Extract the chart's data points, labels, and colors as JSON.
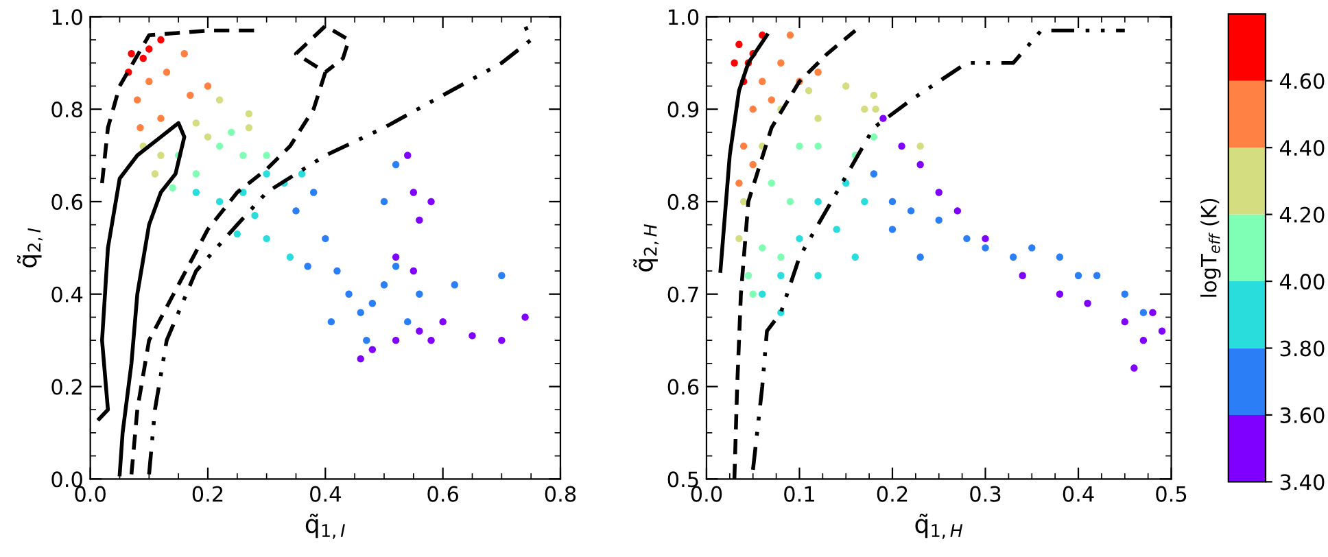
{
  "chart_data": [
    {
      "type": "scatter",
      "xlabel": "q̃$_{1,I}$",
      "ylabel": "q̃$_{2,I}$",
      "xlim": [
        0,
        0.8
      ],
      "ylim": [
        0,
        1
      ],
      "xticks": [
        {
          "value": 0,
          "label": "0.0"
        },
        {
          "value": 0.2,
          "label": "0.2"
        },
        {
          "value": 0.4,
          "label": "0.4"
        },
        {
          "value": 0.6,
          "label": "0.6"
        },
        {
          "value": 0.8,
          "label": "0.8"
        }
      ],
      "yticks": [
        {
          "value": 0,
          "label": "0.0"
        },
        {
          "value": 0.2,
          "label": "0.2"
        },
        {
          "value": 0.4,
          "label": "0.4"
        },
        {
          "value": 0.6,
          "label": "0.6"
        },
        {
          "value": 0.8,
          "label": "0.8"
        },
        {
          "value": 1,
          "label": "1.0"
        }
      ],
      "grid": false,
      "legend": false,
      "series": [
        {
          "marker": "circle",
          "x": [
            0.07,
            0.065,
            0.09,
            0.12,
            0.1,
            0.08,
            0.1,
            0.13,
            0.16,
            0.12,
            0.2,
            0.17,
            0.085,
            0.09,
            0.12,
            0.18,
            0.22,
            0.27,
            0.2,
            0.27,
            0.11,
            0.15,
            0.18,
            0.22,
            0.26,
            0.3,
            0.24,
            0.14,
            0.18,
            0.22,
            0.26,
            0.3,
            0.33,
            0.25,
            0.3,
            0.34,
            0.36,
            0.28,
            0.35,
            0.38,
            0.4,
            0.42,
            0.44,
            0.46,
            0.48,
            0.5,
            0.52,
            0.5,
            0.47,
            0.56,
            0.62,
            0.7,
            0.54,
            0.41,
            0.37,
            0.52,
            0.54,
            0.55,
            0.56,
            0.58,
            0.52,
            0.48,
            0.52,
            0.56,
            0.6,
            0.58,
            0.65,
            0.7,
            0.74,
            0.46,
            0.55
          ],
          "values": [
            0.92,
            0.88,
            0.91,
            0.95,
            0.93,
            0.82,
            0.86,
            0.88,
            0.92,
            0.78,
            0.85,
            0.83,
            0.76,
            0.72,
            0.7,
            0.77,
            0.82,
            0.79,
            0.74,
            0.76,
            0.66,
            0.7,
            0.66,
            0.72,
            0.7,
            0.7,
            0.75,
            0.63,
            0.62,
            0.6,
            0.62,
            0.66,
            0.64,
            0.53,
            0.52,
            0.48,
            0.66,
            0.57,
            0.58,
            0.62,
            0.52,
            0.45,
            0.4,
            0.36,
            0.38,
            0.42,
            0.46,
            0.6,
            0.3,
            0.4,
            0.42,
            0.44,
            0.34,
            0.34,
            0.46,
            0.68,
            0.7,
            0.62,
            0.56,
            0.6,
            0.48,
            0.28,
            0.3,
            0.32,
            0.34,
            0.3,
            0.31,
            0.3,
            0.35,
            0.26,
            0.45
          ],
          "colors": [
            "#ff0000",
            "#ff0000",
            "#ff0000",
            "#ff0000",
            "#ff0000",
            "#ff8040",
            "#ff8040",
            "#ff8040",
            "#ff8040",
            "#ff8040",
            "#ff8040",
            "#ff8040",
            "#ff8040",
            "#d4dd80",
            "#d4dd80",
            "#d4dd80",
            "#d4dd80",
            "#d4dd80",
            "#d4dd80",
            "#d4dd80",
            "#d4dd80",
            "#80ffb4",
            "#80ffb4",
            "#80ffb4",
            "#80ffb4",
            "#80ffb4",
            "#80ffb4",
            "#80ffb4",
            "#2adddd",
            "#2adddd",
            "#2adddd",
            "#2adddd",
            "#2adddd",
            "#2adddd",
            "#2adddd",
            "#2adddd",
            "#2adddd",
            "#2adddd",
            "#2b7ff6",
            "#2b7ff6",
            "#2b7ff6",
            "#2b7ff6",
            "#2b7ff6",
            "#2b7ff6",
            "#2b7ff6",
            "#2b7ff6",
            "#2b7ff6",
            "#2b7ff6",
            "#2b7ff6",
            "#2b7ff6",
            "#2b7ff6",
            "#2b7ff6",
            "#2b7ff6",
            "#2b7ff6",
            "#2b7ff6",
            "#2b7ff6",
            "#8000ff",
            "#8000ff",
            "#8000ff",
            "#8000ff",
            "#8000ff",
            "#8000ff",
            "#8000ff",
            "#8000ff",
            "#8000ff",
            "#8000ff",
            "#8000ff",
            "#8000ff",
            "#8000ff",
            "#8000ff",
            "#8000ff"
          ]
        },
        {
          "type": "line",
          "color": "#000000",
          "line_style": "solid",
          "x": [
            0.05,
            0.055,
            0.07,
            0.08,
            0.1,
            0.12,
            0.145,
            0.16,
            0.15,
            0.12,
            0.08,
            0.05,
            0.03,
            0.02,
            0.03,
            0.015
          ],
          "values": [
            0.01,
            0.1,
            0.25,
            0.4,
            0.55,
            0.62,
            0.66,
            0.74,
            0.77,
            0.74,
            0.7,
            0.65,
            0.5,
            0.3,
            0.15,
            0.13
          ]
        },
        {
          "type": "line",
          "color": "#000000",
          "line_style": "dashed",
          "x": [
            0.02,
            0.03,
            0.05,
            0.1,
            0.2,
            0.28
          ],
          "values": [
            0.64,
            0.76,
            0.85,
            0.96,
            0.97,
            0.97
          ]
        },
        {
          "type": "line",
          "color": "#000000",
          "line_style": "dashed",
          "x": [
            0.07,
            0.08,
            0.1,
            0.15,
            0.2,
            0.25,
            0.3,
            0.34,
            0.38,
            0.4,
            0.35,
            0.4,
            0.44,
            0.43,
            0.4
          ],
          "values": [
            0.01,
            0.15,
            0.3,
            0.42,
            0.54,
            0.62,
            0.67,
            0.72,
            0.8,
            0.88,
            0.92,
            0.98,
            0.95,
            0.91,
            0.88
          ]
        },
        {
          "type": "line",
          "color": "#000000",
          "line_style": "dashdot",
          "x": [
            0.1,
            0.11,
            0.13,
            0.18,
            0.25,
            0.3,
            0.4,
            0.5,
            0.6,
            0.7,
            0.75,
            0.74
          ],
          "values": [
            0.01,
            0.15,
            0.3,
            0.45,
            0.55,
            0.62,
            0.7,
            0.76,
            0.83,
            0.9,
            0.95,
            0.98
          ]
        }
      ]
    },
    {
      "type": "scatter",
      "xlabel": "q̃$_{1,H}$",
      "ylabel": "q̃$_{2,H}$",
      "xlim": [
        0,
        0.5
      ],
      "ylim": [
        0.5,
        1
      ],
      "xticks": [
        {
          "value": 0,
          "label": "0.0"
        },
        {
          "value": 0.1,
          "label": "0.1"
        },
        {
          "value": 0.2,
          "label": "0.2"
        },
        {
          "value": 0.3,
          "label": "0.3"
        },
        {
          "value": 0.4,
          "label": "0.4"
        },
        {
          "value": 0.5,
          "label": "0.5"
        }
      ],
      "yticks": [
        {
          "value": 0.5,
          "label": "0.5"
        },
        {
          "value": 0.6,
          "label": "0.6"
        },
        {
          "value": 0.7,
          "label": "0.7"
        },
        {
          "value": 0.8,
          "label": "0.8"
        },
        {
          "value": 0.9,
          "label": "0.9"
        },
        {
          "value": 1,
          "label": "1.0"
        }
      ],
      "clim": [
        3.4,
        4.8
      ],
      "clabel": "logT$_{eff}$ (K)",
      "cticks": [
        {
          "value": 3.4,
          "label": "3.40"
        },
        {
          "value": 3.6,
          "label": "3.60"
        },
        {
          "value": 3.8,
          "label": "3.80"
        },
        {
          "value": 4.0,
          "label": "4.00"
        },
        {
          "value": 4.2,
          "label": "4.20"
        },
        {
          "value": 4.4,
          "label": "4.40"
        },
        {
          "value": 4.6,
          "label": "4.60"
        }
      ],
      "grid": false,
      "legend": false,
      "series": [
        {
          "marker": "circle",
          "x": [
            0.03,
            0.035,
            0.04,
            0.05,
            0.06,
            0.045,
            0.035,
            0.04,
            0.05,
            0.06,
            0.08,
            0.09,
            0.1,
            0.12,
            0.05,
            0.07,
            0.035,
            0.04,
            0.06,
            0.08,
            0.11,
            0.15,
            0.18,
            0.12,
            0.17,
            0.182,
            0.23,
            0.045,
            0.05,
            0.06,
            0.09,
            0.1,
            0.12,
            0.07,
            0.16,
            0.18,
            0.08,
            0.06,
            0.08,
            0.1,
            0.12,
            0.15,
            0.17,
            0.08,
            0.12,
            0.16,
            0.14,
            0.18,
            0.2,
            0.22,
            0.25,
            0.28,
            0.3,
            0.33,
            0.35,
            0.38,
            0.4,
            0.42,
            0.45,
            0.47,
            0.23,
            0.2,
            0.19,
            0.21,
            0.23,
            0.25,
            0.27,
            0.3,
            0.34,
            0.38,
            0.41,
            0.45,
            0.47,
            0.48,
            0.49,
            0.46
          ],
          "values": [
            0.95,
            0.97,
            0.93,
            0.96,
            0.98,
            0.95,
            0.82,
            0.86,
            0.9,
            0.93,
            0.95,
            0.98,
            0.93,
            0.94,
            0.84,
            0.91,
            0.76,
            0.8,
            0.86,
            0.9,
            0.92,
            0.925,
            0.915,
            0.89,
            0.9,
            0.9,
            0.86,
            0.72,
            0.7,
            0.75,
            0.8,
            0.86,
            0.86,
            0.82,
            0.85,
            0.87,
            0.74,
            0.7,
            0.72,
            0.76,
            0.8,
            0.82,
            0.8,
            0.68,
            0.72,
            0.74,
            0.77,
            0.83,
            0.8,
            0.79,
            0.78,
            0.76,
            0.75,
            0.74,
            0.75,
            0.74,
            0.72,
            0.72,
            0.7,
            0.68,
            0.74,
            0.77,
            0.89,
            0.86,
            0.84,
            0.81,
            0.79,
            0.76,
            0.72,
            0.7,
            0.69,
            0.67,
            0.65,
            0.68,
            0.66,
            0.62
          ],
          "colors": [
            "#ff0000",
            "#ff0000",
            "#ff0000",
            "#ff0000",
            "#ff0000",
            "#ff0000",
            "#ff8040",
            "#ff8040",
            "#ff8040",
            "#ff8040",
            "#ff8040",
            "#ff8040",
            "#ff8040",
            "#ff8040",
            "#ff8040",
            "#ff8040",
            "#d4dd80",
            "#d4dd80",
            "#d4dd80",
            "#d4dd80",
            "#d4dd80",
            "#d4dd80",
            "#d4dd80",
            "#d4dd80",
            "#d4dd80",
            "#d4dd80",
            "#d4dd80",
            "#80ffb4",
            "#80ffb4",
            "#80ffb4",
            "#80ffb4",
            "#80ffb4",
            "#80ffb4",
            "#80ffb4",
            "#80ffb4",
            "#80ffb4",
            "#80ffb4",
            "#2adddd",
            "#2adddd",
            "#2adddd",
            "#2adddd",
            "#2adddd",
            "#2adddd",
            "#2adddd",
            "#2adddd",
            "#2adddd",
            "#2adddd",
            "#2b7ff6",
            "#2b7ff6",
            "#2b7ff6",
            "#2b7ff6",
            "#2b7ff6",
            "#2b7ff6",
            "#2b7ff6",
            "#2b7ff6",
            "#2b7ff6",
            "#2b7ff6",
            "#2b7ff6",
            "#2b7ff6",
            "#2b7ff6",
            "#2b7ff6",
            "#2b7ff6",
            "#8000ff",
            "#8000ff",
            "#8000ff",
            "#8000ff",
            "#8000ff",
            "#8000ff",
            "#8000ff",
            "#8000ff",
            "#8000ff",
            "#8000ff",
            "#8000ff",
            "#8000ff",
            "#8000ff",
            "#8000ff"
          ]
        },
        {
          "type": "line",
          "color": "#000000",
          "line_style": "solid",
          "x": [
            0.015,
            0.025,
            0.035,
            0.045,
            0.065
          ],
          "values": [
            0.725,
            0.85,
            0.92,
            0.95,
            0.98
          ]
        },
        {
          "type": "line",
          "color": "#000000",
          "line_style": "dashed",
          "x": [
            0.03,
            0.033,
            0.037,
            0.045,
            0.07,
            0.1,
            0.13,
            0.16
          ],
          "values": [
            0.5,
            0.6,
            0.7,
            0.8,
            0.88,
            0.93,
            0.96,
            0.985
          ]
        },
        {
          "type": "line",
          "color": "#000000",
          "line_style": "dashdot",
          "x": [
            0.05,
            0.06,
            0.065,
            0.08,
            0.1,
            0.14,
            0.18,
            0.22,
            0.28,
            0.33,
            0.36,
            0.45
          ],
          "values": [
            0.51,
            0.6,
            0.66,
            0.68,
            0.74,
            0.81,
            0.88,
            0.91,
            0.95,
            0.95,
            0.985,
            0.985
          ]
        }
      ]
    }
  ]
}
